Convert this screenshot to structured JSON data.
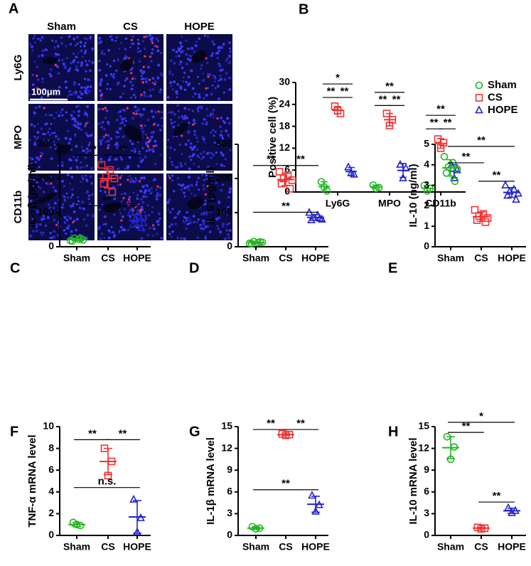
{
  "panel_a": {
    "panel": "A",
    "columns": [
      "Sham",
      "CS",
      "HOPE"
    ],
    "rows": [
      "Ly6G",
      "MPO",
      "CD11b"
    ],
    "scale_bar": "100μm"
  },
  "chart_data": [
    {
      "panel": "B",
      "type": "grouped_dot",
      "ylabel": "Positive cell (%)",
      "categories": [
        "Ly6G",
        "MPO",
        "CD11b"
      ],
      "ylim": [
        0,
        30
      ],
      "yticks": [
        0,
        6,
        12,
        18,
        24,
        30
      ],
      "legend": "right",
      "series": [
        {
          "name": "Sham",
          "color": "#22b522",
          "marker": "circle",
          "values": [
            [
              2.8,
              0.3,
              1.4
            ],
            [
              1.9,
              1.2,
              1.0
            ],
            [
              1.8,
              1.0,
              0.3
            ]
          ],
          "mean": [
            1.5,
            1.4,
            1.0
          ],
          "sd": [
            1.3,
            0.5,
            0.8
          ]
        },
        {
          "name": "CS",
          "color": "#ee3333",
          "marker": "square",
          "values": [
            [
              23.5,
              21.5,
              22.3
            ],
            [
              21.5,
              19.8,
              18.2
            ],
            [
              14.5,
              13.5,
              12.0
            ]
          ],
          "mean": [
            22.4,
            19.8,
            13.3
          ],
          "sd": [
            1.0,
            1.7,
            1.3
          ]
        },
        {
          "name": "HOPE",
          "color": "#2424cc",
          "marker": "triangle",
          "values": [
            [
              6.8,
              4.8,
              5.2
            ],
            [
              7.5,
              6.5,
              3.8
            ],
            [
              7.3,
              6.0,
              3.8
            ]
          ],
          "mean": [
            5.6,
            5.9,
            5.7
          ],
          "sd": [
            1.1,
            1.9,
            1.8
          ]
        }
      ],
      "brackets": [
        {
          "category": 0,
          "from": 0,
          "to": 1,
          "y": 25.9,
          "label": "**"
        },
        {
          "category": 0,
          "from": 1,
          "to": 2,
          "y": 25.9,
          "label": "**"
        },
        {
          "category": 0,
          "from": 0,
          "to": 2,
          "y": 29.6,
          "label": "*"
        },
        {
          "category": 1,
          "from": 0,
          "to": 1,
          "y": 23.7,
          "label": "**"
        },
        {
          "category": 1,
          "from": 1,
          "to": 2,
          "y": 23.7,
          "label": "**"
        },
        {
          "category": 1,
          "from": 0,
          "to": 2,
          "y": 27.3,
          "label": "**"
        },
        {
          "category": 2,
          "from": 0,
          "to": 1,
          "y": 17.3,
          "label": "**"
        },
        {
          "category": 2,
          "from": 1,
          "to": 2,
          "y": 17.3,
          "label": "**"
        },
        {
          "category": 2,
          "from": 0,
          "to": 2,
          "y": 21.0,
          "label": "**"
        }
      ]
    },
    {
      "panel": "C",
      "type": "dot",
      "ylabel": "IL-1β (pg/ml)",
      "categories": [
        "Sham",
        "CS",
        "HOPE"
      ],
      "ylim": [
        0,
        300
      ],
      "yticks": [
        0,
        100,
        200,
        300
      ],
      "groups": [
        {
          "color": "#22b522",
          "marker": "circle",
          "values": [
            18,
            22,
            25,
            20,
            17,
            24
          ],
          "mean": 21,
          "sd": 3
        },
        {
          "color": "#ee3333",
          "marker": "square",
          "values": [
            240,
            225,
            205,
            200,
            185,
            160
          ],
          "mean": 200,
          "sd": 28
        },
        {
          "color": "#2424cc",
          "marker": "triangle",
          "values": [
            100,
            90,
            80,
            70,
            65,
            55
          ],
          "mean": 77,
          "sd": 17
        }
      ],
      "brackets": [
        {
          "from": 0,
          "to": 1,
          "y": 268,
          "label": "**"
        },
        {
          "from": 1,
          "to": 2,
          "y": 268,
          "label": "**"
        },
        {
          "from": 0,
          "to": 2,
          "y": 120,
          "label": "**"
        }
      ]
    },
    {
      "panel": "D",
      "type": "dot",
      "ylabel": "IL-6 (pg/ml)",
      "categories": [
        "Sham",
        "CS",
        "HOPE"
      ],
      "ylim": [
        0,
        300
      ],
      "yticks": [
        0,
        100,
        200,
        300
      ],
      "groups": [
        {
          "color": "#22b522",
          "marker": "circle",
          "values": [
            10,
            12,
            15,
            13,
            9,
            14
          ],
          "mean": 12,
          "sd": 2.5
        },
        {
          "color": "#ee3333",
          "marker": "square",
          "values": [
            220,
            210,
            200,
            195,
            185,
            170
          ],
          "mean": 197,
          "sd": 18
        },
        {
          "color": "#2424cc",
          "marker": "triangle",
          "values": [
            100,
            92,
            85,
            80,
            78,
            83
          ],
          "mean": 86,
          "sd": 8
        }
      ],
      "brackets": [
        {
          "from": 0,
          "to": 1,
          "y": 238,
          "label": "**"
        },
        {
          "from": 1,
          "to": 2,
          "y": 238,
          "label": "**"
        },
        {
          "from": 0,
          "to": 2,
          "y": 101,
          "label": "**"
        }
      ]
    },
    {
      "panel": "E",
      "type": "dot",
      "ylabel": "IL-10 (ng/ml)",
      "categories": [
        "Sham",
        "CS",
        "HOPE"
      ],
      "ylim": [
        0,
        5
      ],
      "yticks": [
        0,
        1,
        2,
        3,
        4,
        5
      ],
      "groups": [
        {
          "color": "#22b522",
          "marker": "circle",
          "values": [
            4.4,
            4.1,
            3.9,
            3.8,
            3.6,
            3.2
          ],
          "mean": 3.85,
          "sd": 0.4
        },
        {
          "color": "#ee3333",
          "marker": "square",
          "values": [
            1.8,
            1.6,
            1.5,
            1.4,
            1.3,
            1.2
          ],
          "mean": 1.47,
          "sd": 0.22
        },
        {
          "color": "#2424cc",
          "marker": "triangle",
          "values": [
            3.0,
            2.8,
            2.7,
            2.6,
            2.5,
            2.3
          ],
          "mean": 2.65,
          "sd": 0.24
        }
      ],
      "brackets": [
        {
          "from": 0,
          "to": 2,
          "y": 4.9,
          "label": "**"
        },
        {
          "from": 0,
          "to": 1,
          "y": 4.1,
          "label": "**"
        },
        {
          "from": 1,
          "to": 2,
          "y": 3.2,
          "label": "**"
        }
      ]
    },
    {
      "panel": "F",
      "type": "dot",
      "ylabel": "TNF-α mRNA level",
      "categories": [
        "Sham",
        "CS",
        "HOPE"
      ],
      "ylim": [
        0,
        10
      ],
      "yticks": [
        0,
        2,
        4,
        6,
        8,
        10
      ],
      "groups": [
        {
          "color": "#22b522",
          "marker": "circle",
          "values": [
            1.2,
            0.9,
            1.0
          ],
          "mean": 1.0,
          "sd": 0.2
        },
        {
          "color": "#ee3333",
          "marker": "square",
          "values": [
            8.0,
            6.8,
            5.5
          ],
          "mean": 6.8,
          "sd": 1.2
        },
        {
          "color": "#2424cc",
          "marker": "triangle",
          "values": [
            3.3,
            1.6,
            0.3
          ],
          "mean": 1.7,
          "sd": 1.5
        }
      ],
      "brackets": [
        {
          "from": 0,
          "to": 1,
          "y": 8.8,
          "label": "**"
        },
        {
          "from": 1,
          "to": 2,
          "y": 8.8,
          "label": "**"
        },
        {
          "from": 0,
          "to": 2,
          "y": 4.4,
          "label": "n.s."
        }
      ]
    },
    {
      "panel": "G",
      "type": "dot",
      "ylabel": "IL-1β mRNA level",
      "categories": [
        "Sham",
        "CS",
        "HOPE"
      ],
      "ylim": [
        0,
        15
      ],
      "yticks": [
        0,
        3,
        6,
        9,
        12,
        15
      ],
      "groups": [
        {
          "color": "#22b522",
          "marker": "circle",
          "values": [
            1.2,
            1.0,
            0.9
          ],
          "mean": 1.0,
          "sd": 0.15
        },
        {
          "color": "#ee3333",
          "marker": "square",
          "values": [
            14.0,
            13.9,
            13.8
          ],
          "mean": 13.9,
          "sd": 0.1
        },
        {
          "color": "#2424cc",
          "marker": "triangle",
          "values": [
            5.5,
            4.2,
            3.3
          ],
          "mean": 4.3,
          "sd": 1.1
        }
      ],
      "brackets": [
        {
          "from": 0,
          "to": 1,
          "y": 14.6,
          "label": "**"
        },
        {
          "from": 1,
          "to": 2,
          "y": 14.6,
          "label": "**"
        },
        {
          "from": 0,
          "to": 2,
          "y": 6.3,
          "label": "**"
        }
      ]
    },
    {
      "panel": "H",
      "type": "dot",
      "ylabel": "IL-10 mRNA level",
      "categories": [
        "Sham",
        "CS",
        "HOPE"
      ],
      "ylim": [
        0,
        15
      ],
      "yticks": [
        0,
        3,
        6,
        9,
        12,
        15
      ],
      "groups": [
        {
          "color": "#22b522",
          "marker": "circle",
          "values": [
            13.6,
            12.2,
            10.5
          ],
          "mean": 12.1,
          "sd": 1.5
        },
        {
          "color": "#ee3333",
          "marker": "square",
          "values": [
            1.1,
            1.0,
            0.9
          ],
          "mean": 1.0,
          "sd": 0.1
        },
        {
          "color": "#2424cc",
          "marker": "triangle",
          "values": [
            3.8,
            3.4,
            3.1
          ],
          "mean": 3.4,
          "sd": 0.35
        }
      ],
      "brackets": [
        {
          "from": 0,
          "to": 2,
          "y": 15.6,
          "label": "*"
        },
        {
          "from": 0,
          "to": 1,
          "y": 14.2,
          "label": "**"
        },
        {
          "from": 1,
          "to": 2,
          "y": 4.6,
          "label": "**"
        }
      ]
    }
  ]
}
